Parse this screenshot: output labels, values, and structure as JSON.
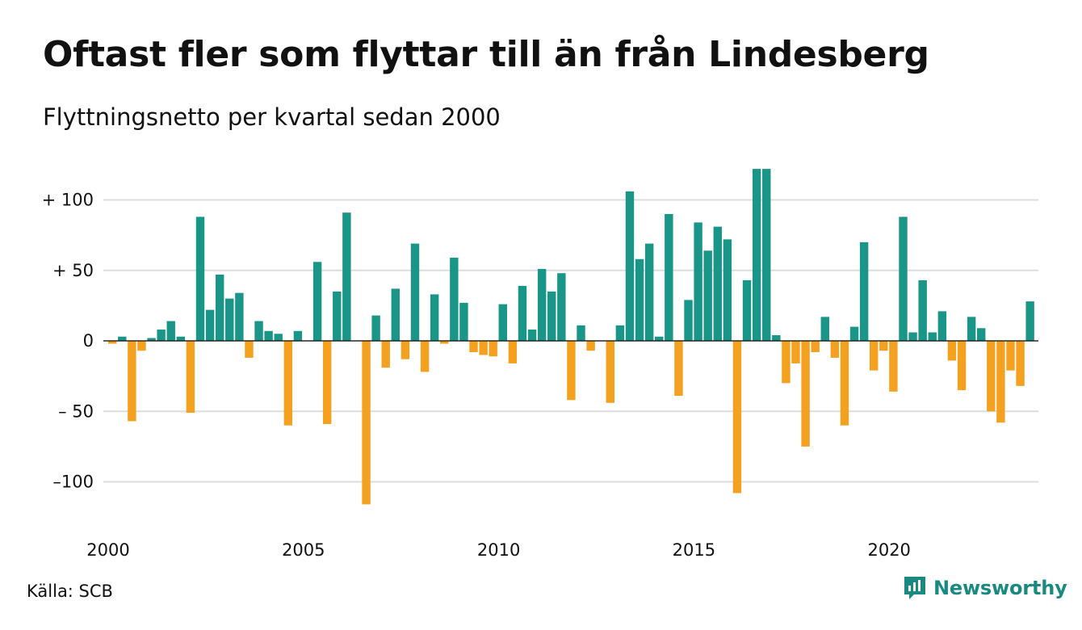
{
  "title": "Oftast fler som flyttar till än från Lindesberg",
  "subtitle": "Flyttningsnetto per kvartal sedan 2000",
  "source": "Källa: SCB",
  "brand": {
    "name": "Newsworthy",
    "icon": "newsworthy-logo-icon"
  },
  "colors": {
    "positive": "#1a9688",
    "negative": "#f4a11f",
    "grid": "#dddddd",
    "brand": "#1a8a80"
  },
  "chart_data": {
    "type": "bar",
    "title": "Oftast fler som flyttar till än från Lindesberg",
    "subtitle": "Flyttningsnetto per kvartal sedan 2000",
    "xlabel": "",
    "ylabel": "",
    "x_start": 2000,
    "periods_per_year": 4,
    "ylim": [
      -122,
      122
    ],
    "yticks": [
      {
        "value": 100,
        "label": "+ 100"
      },
      {
        "value": 50,
        "label": "+  50"
      },
      {
        "value": 0,
        "label": "0"
      },
      {
        "value": -50,
        "label": "– 50"
      },
      {
        "value": -100,
        "label": "–100"
      }
    ],
    "xticks": [
      {
        "year": 2000,
        "label": "2000"
      },
      {
        "year": 2005,
        "label": "2005"
      },
      {
        "year": 2010,
        "label": "2010"
      },
      {
        "year": 2015,
        "label": "2015"
      },
      {
        "year": 2020,
        "label": "2020"
      }
    ],
    "grid": true,
    "legend": "none",
    "values": [
      -2,
      3,
      -57,
      -7,
      2,
      8,
      14,
      3,
      -51,
      88,
      22,
      47,
      30,
      34,
      -12,
      14,
      7,
      5,
      -60,
      7,
      0,
      56,
      -59,
      35,
      91,
      0,
      -116,
      18,
      -19,
      37,
      -13,
      69,
      -22,
      33,
      -2,
      59,
      27,
      -8,
      -10,
      -11,
      26,
      -16,
      39,
      8,
      51,
      35,
      48,
      -42,
      11,
      -7,
      0,
      -44,
      11,
      106,
      58,
      69,
      3,
      90,
      -39,
      29,
      84,
      64,
      81,
      72,
      -108,
      43,
      122,
      122,
      4,
      -30,
      -16,
      -75,
      -8,
      17,
      -12,
      -60,
      10,
      70,
      -21,
      -7,
      -36,
      88,
      6,
      43,
      6,
      21,
      -14,
      -35,
      17,
      9,
      -50,
      -58,
      -21,
      -32,
      28
    ]
  }
}
